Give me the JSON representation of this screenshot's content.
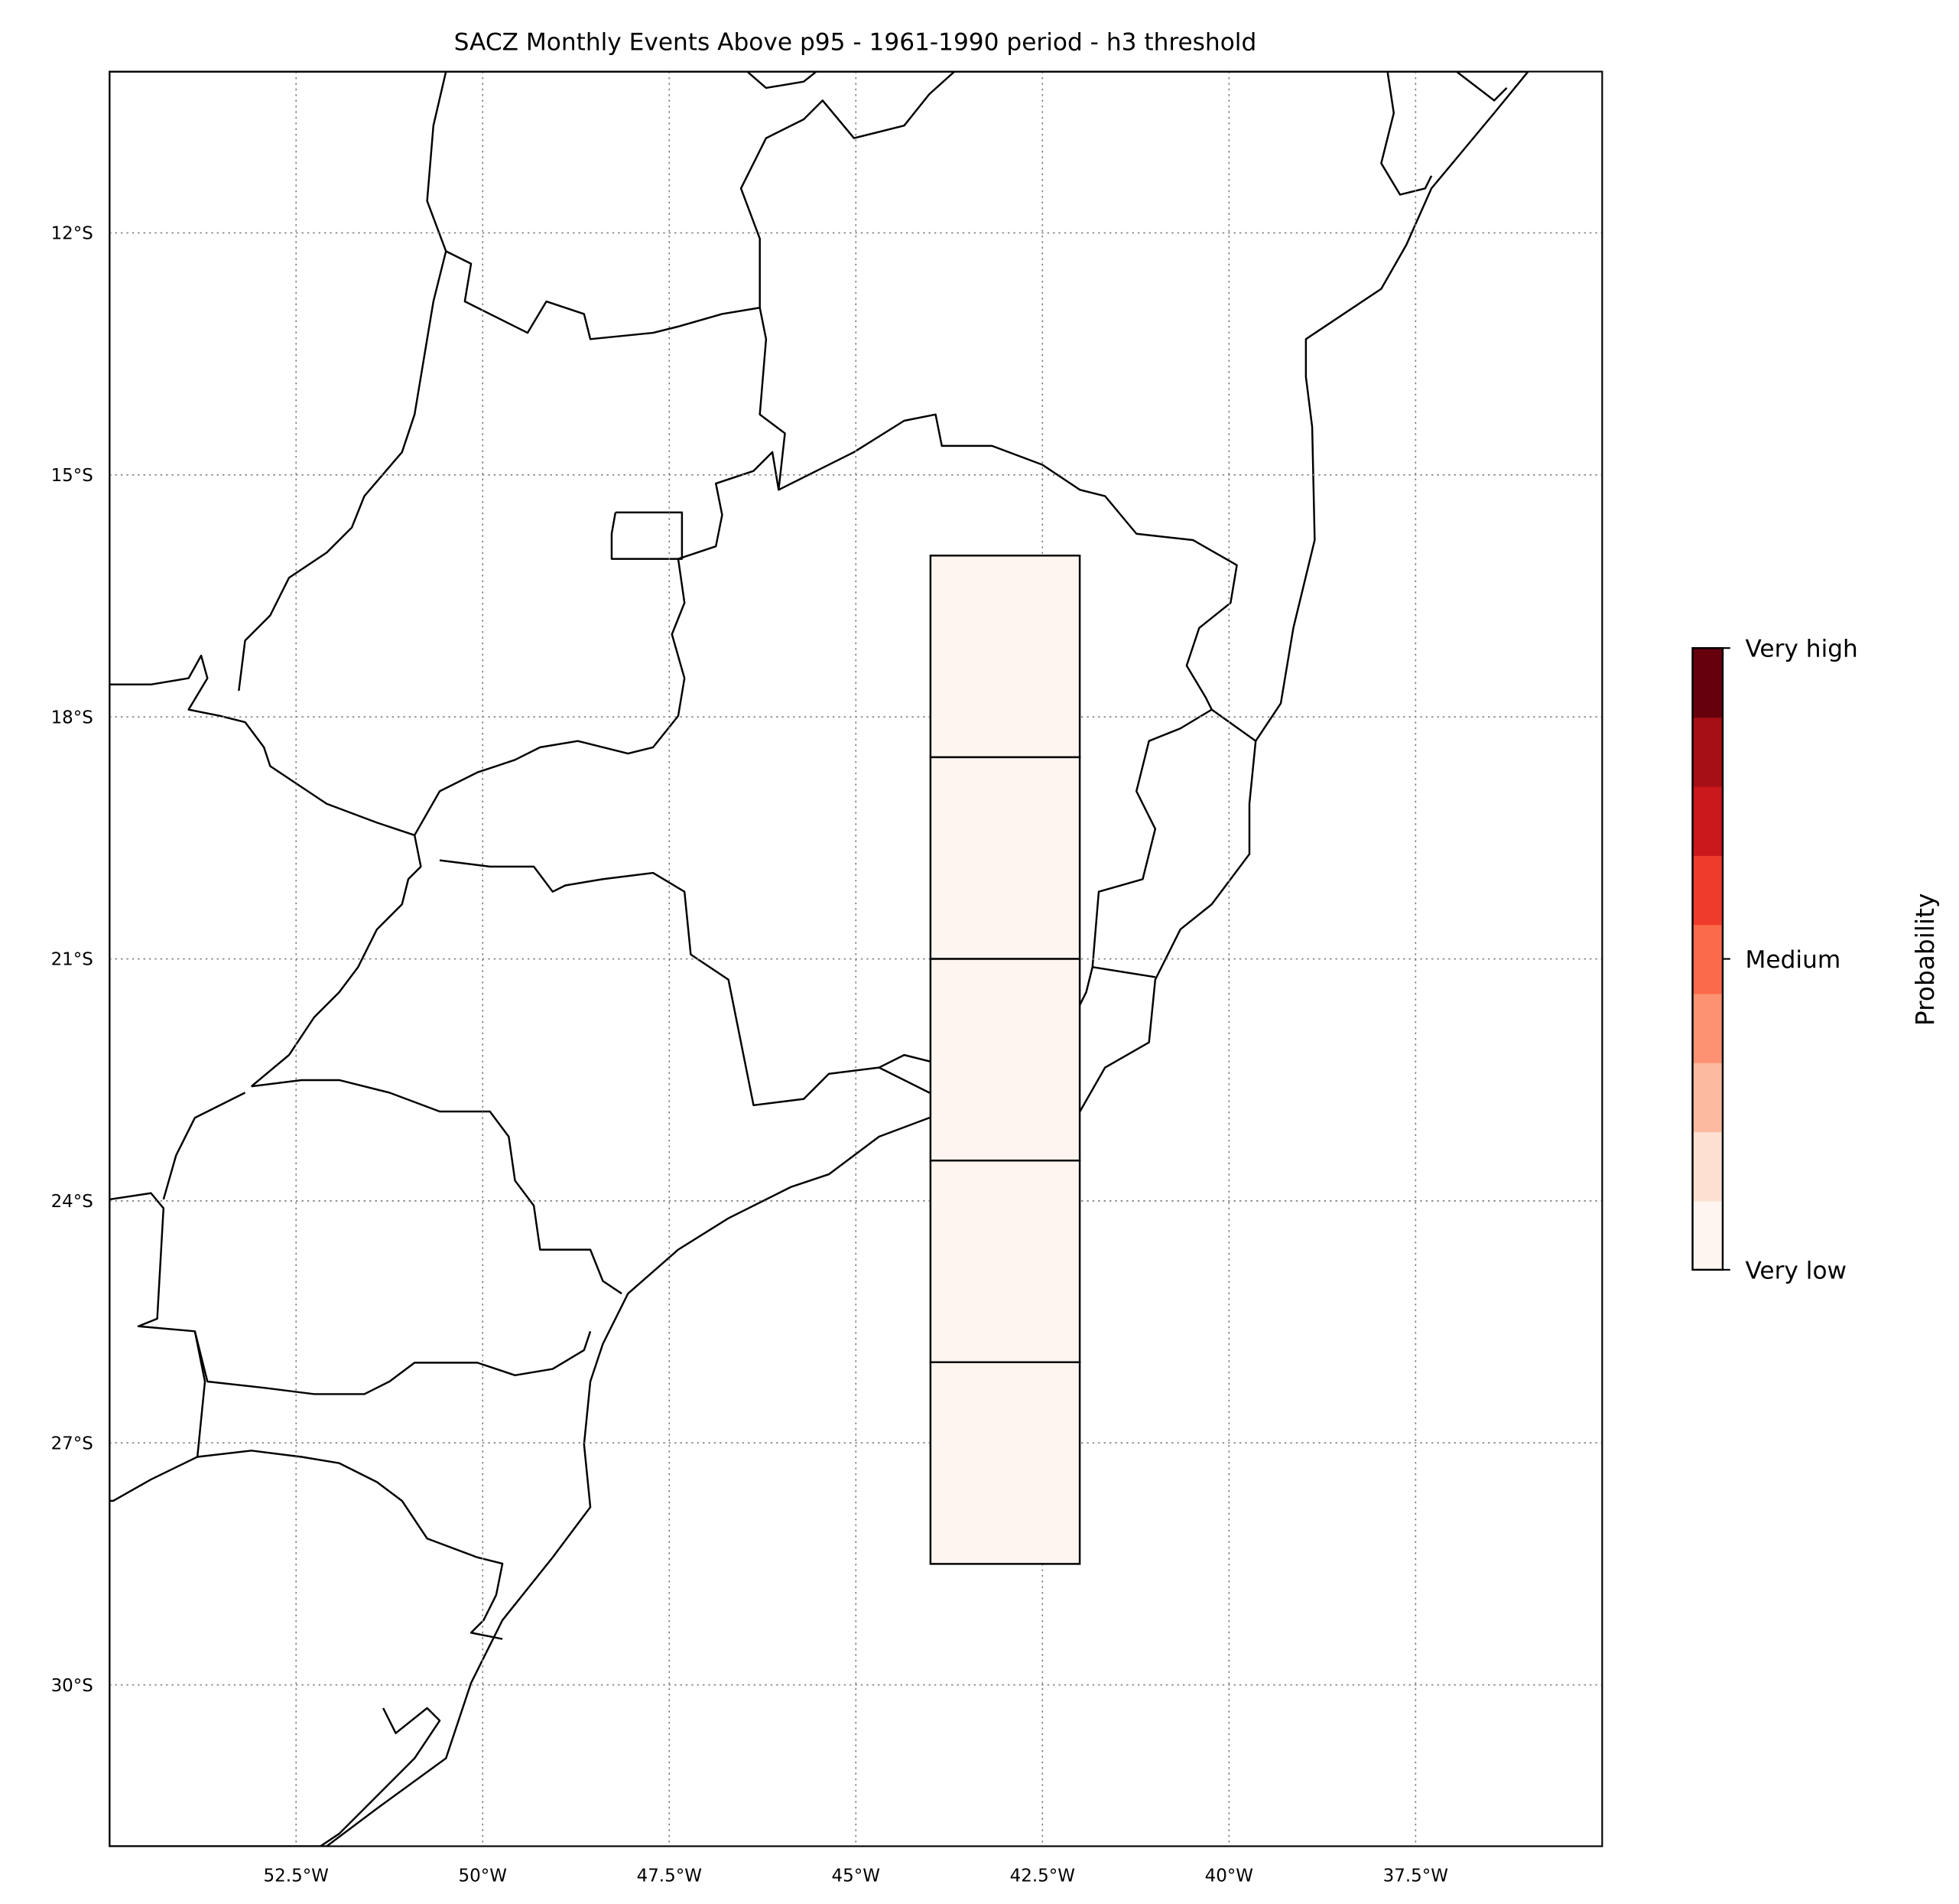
{
  "chart_data": {
    "type": "heatmap",
    "title": "SACZ Monthly Events Above p95 - 1961-1990 period - h3 threshold",
    "xlim": [
      -55,
      -35
    ],
    "ylim": [
      -32,
      -10
    ],
    "x_ticks": [
      {
        "value": -52.5,
        "label": "52.5°W"
      },
      {
        "value": -50,
        "label": "50°W"
      },
      {
        "value": -47.5,
        "label": "47.5°W"
      },
      {
        "value": -45,
        "label": "45°W"
      },
      {
        "value": -42.5,
        "label": "42.5°W"
      },
      {
        "value": -40,
        "label": "40°W"
      },
      {
        "value": -37.5,
        "label": "37.5°W"
      }
    ],
    "y_ticks": [
      {
        "value": -12,
        "label": "12°S"
      },
      {
        "value": -15,
        "label": "15°S"
      },
      {
        "value": -18,
        "label": "18°S"
      },
      {
        "value": -21,
        "label": "21°S"
      },
      {
        "value": -24,
        "label": "24°S"
      },
      {
        "value": -27,
        "label": "27°S"
      },
      {
        "value": -30,
        "label": "30°S"
      }
    ],
    "grid": true,
    "land_color": "#d3d3d3",
    "cells": [
      {
        "lon_min": -44,
        "lon_max": -42,
        "lat_max": -16,
        "lat_min": -18.5,
        "level": 0
      },
      {
        "lon_min": -44,
        "lon_max": -42,
        "lat_max": -18.5,
        "lat_min": -21,
        "level": 0
      },
      {
        "lon_min": -44,
        "lon_max": -42,
        "lat_max": -21,
        "lat_min": -23.5,
        "level": 0
      },
      {
        "lon_min": -44,
        "lon_max": -42,
        "lat_max": -23.5,
        "lat_min": -26,
        "level": 0
      },
      {
        "lon_min": -44,
        "lon_max": -42,
        "lat_max": -26,
        "lat_min": -28.5,
        "level": 0
      }
    ],
    "colorbar": {
      "label": "Probability",
      "colors": [
        "#fff5f0",
        "#fee0d2",
        "#fcbba1",
        "#fc9272",
        "#fb6a4a",
        "#ef3b2c",
        "#cb181d",
        "#a50f15",
        "#67000d"
      ],
      "ticks": [
        {
          "position": 0,
          "label": "Very low"
        },
        {
          "position": 0.5,
          "label": "Medium"
        },
        {
          "position": 1,
          "label": "Very high"
        }
      ]
    }
  }
}
